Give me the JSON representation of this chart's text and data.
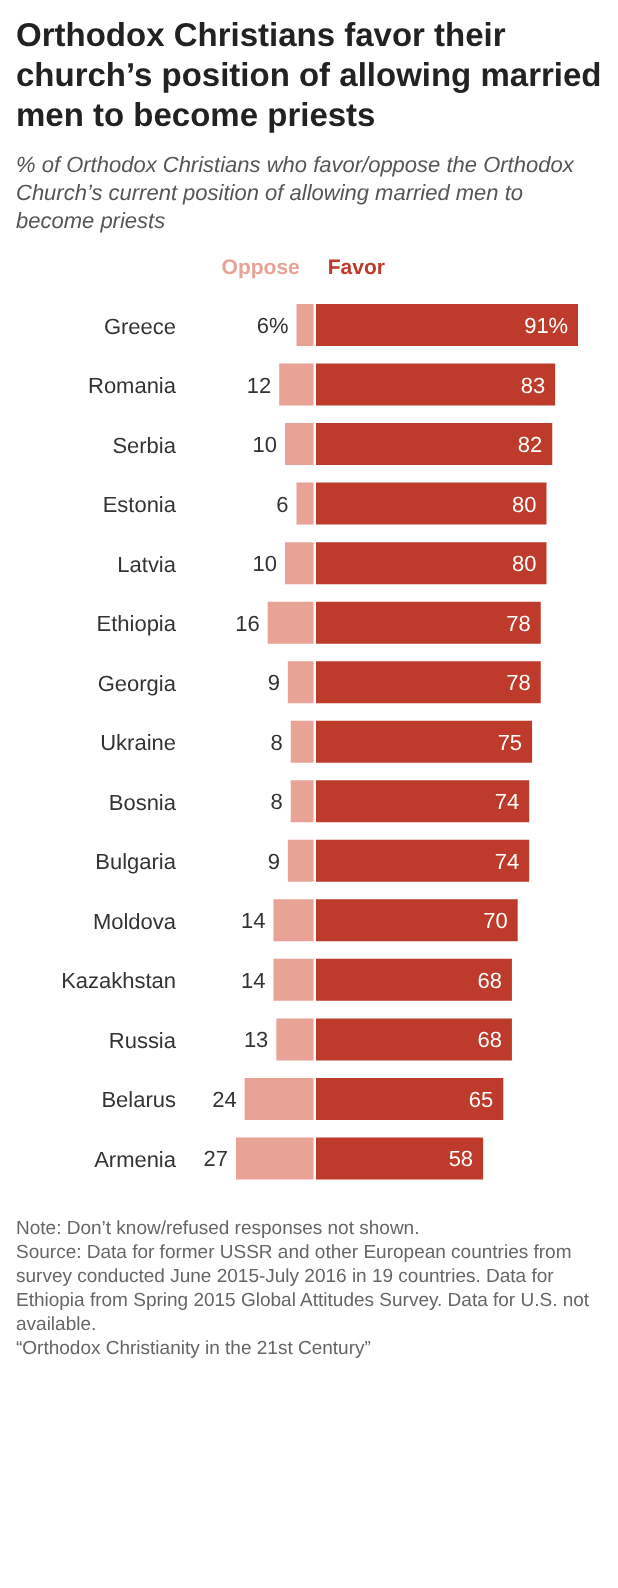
{
  "chart_data": [
    {
      "type": "bar",
      "orientation": "horizontal",
      "xlim": [
        27,
        0
      ],
      "tick_labels": "y",
      "title": "Orthodox Christians favor their church’s position of allowing married men to become priests",
      "subtitle": "% of Orthodox Christians who favor/oppose the Orthodox Church’s current position of allowing married men to become priests",
      "categories": [
        "Greece",
        "Romania",
        "Serbia",
        "Estonia",
        "Latvia",
        "Ethiopia",
        "Georgia",
        "Ukraine",
        "Bosnia",
        "Bulgaria",
        "Moldova",
        "Kazakhstan",
        "Russia",
        "Belarus",
        "Armenia"
      ],
      "series": [
        {
          "name": "Oppose",
          "color": "#e8a396",
          "values": [
            6,
            12,
            10,
            6,
            10,
            16,
            9,
            8,
            8,
            9,
            14,
            14,
            13,
            24,
            27
          ],
          "value_labels": [
            "6%",
            "12",
            "10",
            "6",
            "10",
            "16",
            "9",
            "8",
            "8",
            "9",
            "14",
            "14",
            "13",
            "24",
            "27"
          ]
        }
      ]
    },
    {
      "type": "bar",
      "orientation": "horizontal",
      "tick_labels": false,
      "xlim": [
        0,
        91
      ],
      "series": [
        {
          "name": "Favor",
          "color": "#be3a2b",
          "values": [
            91,
            83,
            82,
            80,
            80,
            78,
            78,
            75,
            74,
            74,
            70,
            68,
            68,
            65,
            58
          ],
          "value_labels": [
            "91%",
            "83",
            "82",
            "80",
            "80",
            "78",
            "78",
            "75",
            "74",
            "74",
            "70",
            "68",
            "68",
            "65",
            "58"
          ]
        }
      ],
      "annotations": [
        "Note: Don’t know/refused responses not shown.",
        "Source: Data for former USSR and other European countries from survey conducted June 2015-July 2016 in 19 countries. Data for Ethiopia from Spring 2015 Global Attitudes Survey. Data for U.S. not available.",
        "“Orthodox Christianity in the 21st Century”"
      ]
    }
  ]
}
